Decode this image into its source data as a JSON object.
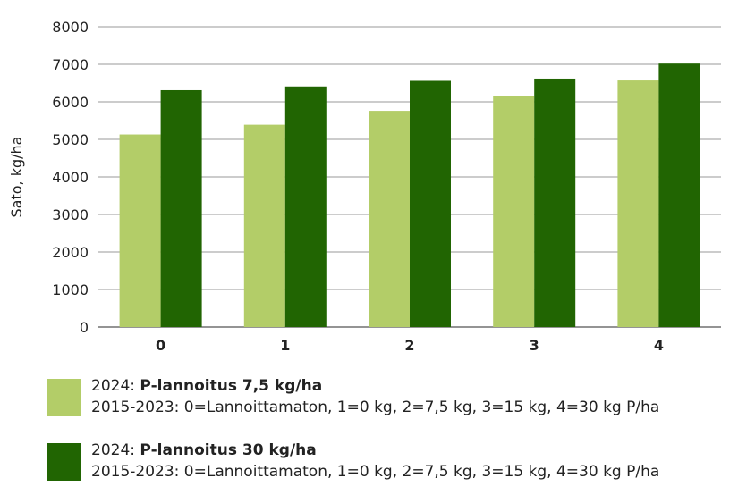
{
  "chart_data": {
    "type": "bar",
    "categories": [
      "0",
      "1",
      "2",
      "3",
      "4"
    ],
    "series": [
      {
        "name_prefix": "2024: ",
        "name_bold": "P-lannoitus 7,5 kg/ha",
        "name_sub": "2015-2023: 0=Lannoittamaton, 1=0 kg, 2=7,5 kg, 3=15 kg, 4=30 kg P/ha",
        "color": "#b3cd68",
        "values": [
          5130,
          5390,
          5760,
          6150,
          6570
        ]
      },
      {
        "name_prefix": "2024: ",
        "name_bold": "P-lannoitus 30 kg/ha",
        "name_sub": "2015-2023: 0=Lannoittamaton, 1=0 kg, 2=7,5 kg, 3=15 kg, 4=30 kg P/ha",
        "color": "#216502",
        "values": [
          6310,
          6410,
          6560,
          6620,
          7020
        ]
      }
    ],
    "ylabel": "Sato, kg/ha",
    "xlabel": "",
    "ylim": [
      0,
      8000
    ],
    "yticks": [
      "0",
      "1000",
      "2000",
      "3000",
      "4000",
      "5000",
      "6000",
      "7000",
      "8000"
    ],
    "grid": true
  }
}
